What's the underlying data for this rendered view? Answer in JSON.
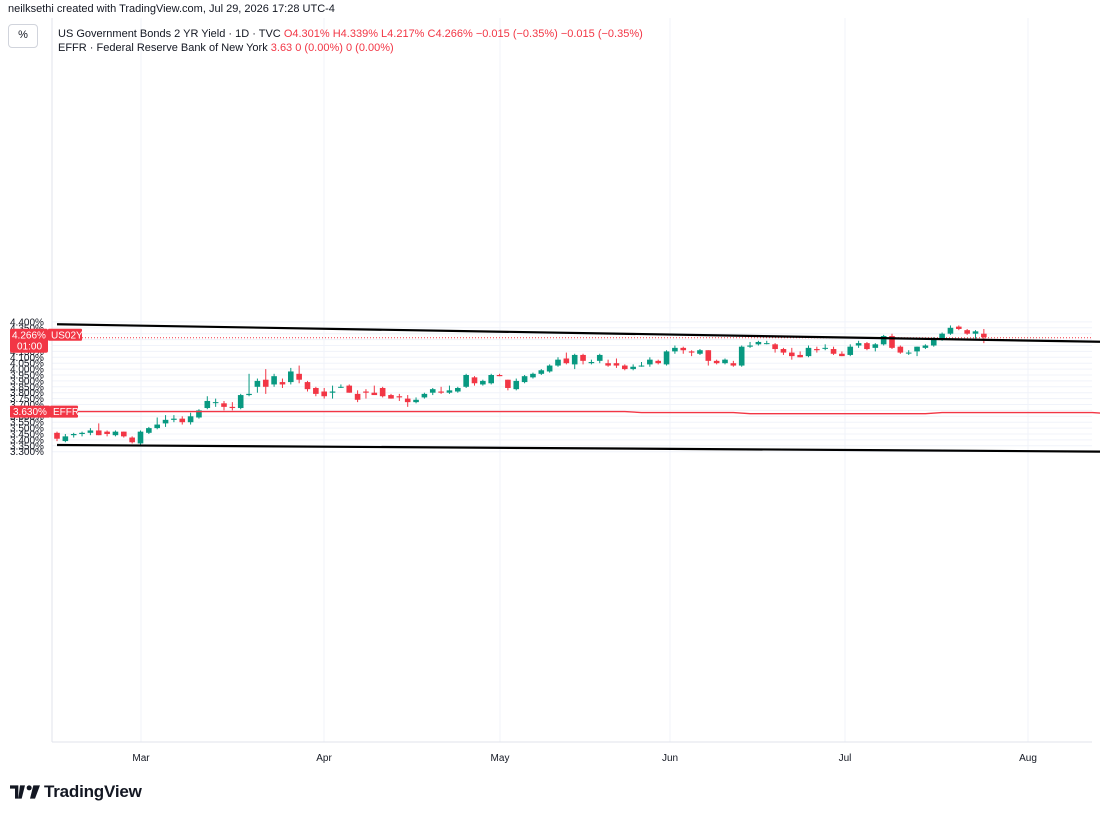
{
  "header": {
    "attribution": "neilksethi created with TradingView.com, Jul 29, 2026 17:28 UTC-4",
    "settings_label": "%"
  },
  "legend": {
    "series1": {
      "name": "US Government Bonds 2 YR Yield · 1D · TVC",
      "ohlc": "O4.301% H4.339% L4.217% C4.266% −0.015 (−0.35%) −0.015 (−0.35%)"
    },
    "series2": {
      "name": "EFFR · Federal Reserve Bank of New York",
      "values": "3.63 0 (0.00%) 0 (0.00%)"
    }
  },
  "brand": {
    "name": "TradingView"
  },
  "colors": {
    "up": "#089981",
    "down": "#f23645",
    "trendline": "#000000",
    "effr": "#f23645",
    "grid": "#f0f3fa"
  },
  "chart_data": {
    "type": "candlestick",
    "yaxis": {
      "ticks": [
        "3.300%",
        "3.350%",
        "3.400%",
        "3.450%",
        "3.500%",
        "3.550%",
        "3.600%",
        "3.650%",
        "3.700%",
        "3.750%",
        "3.800%",
        "3.850%",
        "3.900%",
        "3.950%",
        "4.000%",
        "4.050%",
        "4.100%",
        "4.150%",
        "4.200%",
        "4.250%",
        "4.300%",
        "4.350%",
        "4.400%"
      ],
      "range": [
        3.27,
        4.47
      ]
    },
    "xaxis": {
      "ticks": [
        "Mar",
        "Apr",
        "May",
        "Jun",
        "Jul",
        "Aug"
      ]
    },
    "last_price_tag": {
      "value": "4.266%",
      "symbol": "US02Y",
      "countdown": "01:00",
      "price": 4.266
    },
    "effr_tag": {
      "value": "3.630%",
      "symbol": "EFFR"
    },
    "series": [
      {
        "name": "US Government Bonds 2 YR Yield",
        "ohlc": [
          [
            3.46,
            3.47,
            3.39,
            3.41
          ],
          [
            3.39,
            3.45,
            3.38,
            3.43
          ],
          [
            3.44,
            3.46,
            3.42,
            3.45
          ],
          [
            3.45,
            3.47,
            3.43,
            3.46
          ],
          [
            3.46,
            3.5,
            3.44,
            3.48
          ],
          [
            3.48,
            3.54,
            3.44,
            3.44
          ],
          [
            3.47,
            3.48,
            3.43,
            3.45
          ],
          [
            3.44,
            3.48,
            3.43,
            3.47
          ],
          [
            3.47,
            3.47,
            3.42,
            3.43
          ],
          [
            3.42,
            3.43,
            3.37,
            3.38
          ],
          [
            3.37,
            3.48,
            3.36,
            3.47
          ],
          [
            3.46,
            3.51,
            3.45,
            3.5
          ],
          [
            3.5,
            3.59,
            3.49,
            3.53
          ],
          [
            3.54,
            3.61,
            3.51,
            3.57
          ],
          [
            3.57,
            3.61,
            3.55,
            3.58
          ],
          [
            3.58,
            3.6,
            3.53,
            3.55
          ],
          [
            3.55,
            3.63,
            3.53,
            3.6
          ],
          [
            3.59,
            3.66,
            3.58,
            3.65
          ],
          [
            3.67,
            3.77,
            3.66,
            3.73
          ],
          [
            3.72,
            3.75,
            3.68,
            3.72
          ],
          [
            3.71,
            3.73,
            3.65,
            3.68
          ],
          [
            3.68,
            3.72,
            3.65,
            3.67
          ],
          [
            3.67,
            3.79,
            3.66,
            3.78
          ],
          [
            3.78,
            3.96,
            3.77,
            3.79
          ],
          [
            3.85,
            3.92,
            3.8,
            3.9
          ],
          [
            3.91,
            4.0,
            3.79,
            3.85
          ],
          [
            3.87,
            3.96,
            3.85,
            3.94
          ],
          [
            3.89,
            3.92,
            3.84,
            3.87
          ],
          [
            3.89,
            4.01,
            3.87,
            3.98
          ],
          [
            3.96,
            4.03,
            3.88,
            3.91
          ],
          [
            3.89,
            3.9,
            3.81,
            3.83
          ],
          [
            3.84,
            3.85,
            3.77,
            3.79
          ],
          [
            3.81,
            3.84,
            3.75,
            3.77
          ],
          [
            3.8,
            3.86,
            3.75,
            3.81
          ],
          [
            3.85,
            3.87,
            3.84,
            3.85
          ],
          [
            3.86,
            3.87,
            3.8,
            3.8
          ],
          [
            3.79,
            3.82,
            3.72,
            3.74
          ],
          [
            3.81,
            3.83,
            3.75,
            3.8
          ],
          [
            3.8,
            3.86,
            3.79,
            3.78
          ],
          [
            3.84,
            3.85,
            3.76,
            3.77
          ],
          [
            3.78,
            3.79,
            3.75,
            3.75
          ],
          [
            3.77,
            3.79,
            3.73,
            3.76
          ],
          [
            3.75,
            3.78,
            3.68,
            3.72
          ],
          [
            3.72,
            3.76,
            3.71,
            3.74
          ],
          [
            3.76,
            3.8,
            3.75,
            3.79
          ],
          [
            3.8,
            3.84,
            3.78,
            3.83
          ],
          [
            3.81,
            3.85,
            3.79,
            3.8
          ],
          [
            3.8,
            3.86,
            3.79,
            3.82
          ],
          [
            3.81,
            3.85,
            3.8,
            3.84
          ],
          [
            3.85,
            3.96,
            3.84,
            3.95
          ],
          [
            3.93,
            3.94,
            3.86,
            3.88
          ],
          [
            3.87,
            3.91,
            3.86,
            3.9
          ],
          [
            3.88,
            3.96,
            3.87,
            3.95
          ],
          [
            3.95,
            3.96,
            3.94,
            3.94
          ],
          [
            3.91,
            3.91,
            3.82,
            3.84
          ],
          [
            3.83,
            3.92,
            3.82,
            3.9
          ],
          [
            3.89,
            3.95,
            3.88,
            3.94
          ],
          [
            3.93,
            3.97,
            3.92,
            3.96
          ],
          [
            3.96,
            4.0,
            3.95,
            3.99
          ],
          [
            3.98,
            4.04,
            3.97,
            4.03
          ],
          [
            4.03,
            4.1,
            4.02,
            4.08
          ],
          [
            4.09,
            4.14,
            4.04,
            4.05
          ],
          [
            4.04,
            4.13,
            4.0,
            4.12
          ],
          [
            4.12,
            4.13,
            4.04,
            4.07
          ],
          [
            4.05,
            4.08,
            4.04,
            4.06
          ],
          [
            4.07,
            4.13,
            4.05,
            4.12
          ],
          [
            4.05,
            4.08,
            4.02,
            4.03
          ],
          [
            4.05,
            4.09,
            4.01,
            4.03
          ],
          [
            4.03,
            4.04,
            3.99,
            4.0
          ],
          [
            4.0,
            4.04,
            3.99,
            4.02
          ],
          [
            4.03,
            4.06,
            4.02,
            4.03
          ],
          [
            4.04,
            4.1,
            4.02,
            4.08
          ],
          [
            4.07,
            4.08,
            4.04,
            4.05
          ],
          [
            4.04,
            4.16,
            4.03,
            4.15
          ],
          [
            4.15,
            4.2,
            4.13,
            4.18
          ],
          [
            4.18,
            4.19,
            4.13,
            4.16
          ],
          [
            4.15,
            4.16,
            4.11,
            4.14
          ],
          [
            4.13,
            4.17,
            4.12,
            4.16
          ],
          [
            4.16,
            4.16,
            4.03,
            4.07
          ],
          [
            4.07,
            4.08,
            4.04,
            4.05
          ],
          [
            4.05,
            4.09,
            4.04,
            4.08
          ],
          [
            4.05,
            4.07,
            4.02,
            4.03
          ],
          [
            4.03,
            4.2,
            4.02,
            4.19
          ],
          [
            4.19,
            4.23,
            4.18,
            4.2
          ],
          [
            4.21,
            4.24,
            4.2,
            4.23
          ],
          [
            4.22,
            4.24,
            4.21,
            4.22
          ],
          [
            4.21,
            4.22,
            4.14,
            4.17
          ],
          [
            4.17,
            4.18,
            4.12,
            4.14
          ],
          [
            4.14,
            4.18,
            4.08,
            4.11
          ],
          [
            4.12,
            4.15,
            4.1,
            4.1
          ],
          [
            4.11,
            4.2,
            4.1,
            4.18
          ],
          [
            4.17,
            4.19,
            4.14,
            4.16
          ],
          [
            4.18,
            4.21,
            4.16,
            4.18
          ],
          [
            4.17,
            4.19,
            4.12,
            4.13
          ],
          [
            4.13,
            4.15,
            4.11,
            4.11
          ],
          [
            4.12,
            4.21,
            4.11,
            4.19
          ],
          [
            4.2,
            4.24,
            4.18,
            4.22
          ],
          [
            4.22,
            4.23,
            4.16,
            4.17
          ],
          [
            4.18,
            4.22,
            4.15,
            4.21
          ],
          [
            4.21,
            4.29,
            4.2,
            4.28
          ],
          [
            4.28,
            4.3,
            4.17,
            4.18
          ],
          [
            4.19,
            4.2,
            4.13,
            4.14
          ],
          [
            4.14,
            4.16,
            4.12,
            4.14
          ],
          [
            4.15,
            4.19,
            4.11,
            4.19
          ],
          [
            4.18,
            4.21,
            4.17,
            4.2
          ],
          [
            4.2,
            4.27,
            4.19,
            4.25
          ],
          [
            4.26,
            4.31,
            4.24,
            4.3
          ],
          [
            4.3,
            4.37,
            4.29,
            4.35
          ],
          [
            4.36,
            4.37,
            4.33,
            4.34
          ],
          [
            4.33,
            4.34,
            4.29,
            4.3
          ],
          [
            4.3,
            4.33,
            4.26,
            4.32
          ],
          [
            4.3,
            4.34,
            4.22,
            4.27
          ]
        ]
      },
      {
        "name": "EFFR",
        "type": "line",
        "points": [
          [
            0,
            3.64
          ],
          [
            68,
            3.64
          ],
          [
            70,
            3.632
          ],
          [
            81,
            3.632
          ],
          [
            83,
            3.622
          ],
          [
            104,
            3.622
          ],
          [
            106,
            3.632
          ],
          [
            124,
            3.632
          ],
          [
            126,
            3.622
          ],
          [
            131,
            3.622
          ],
          [
            133,
            3.632
          ],
          [
            150,
            3.632
          ]
        ]
      }
    ],
    "trendlines": [
      {
        "name": "upper",
        "from": [
          0,
          4.38
        ],
        "to": [
          160,
          4.19
        ]
      },
      {
        "name": "lower",
        "from": [
          0,
          3.357
        ],
        "to": [
          160,
          3.285
        ]
      }
    ]
  }
}
